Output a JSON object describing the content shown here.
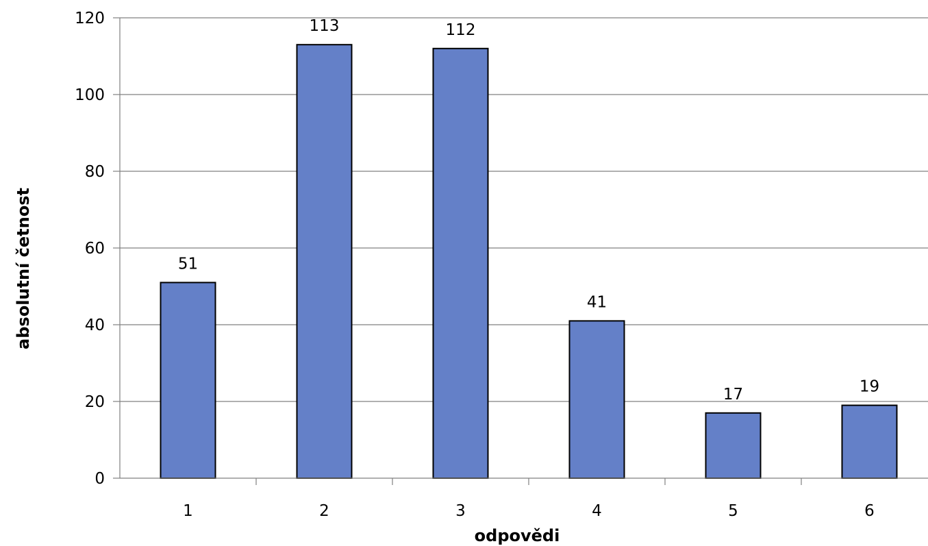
{
  "chart_data": {
    "type": "bar",
    "categories": [
      "1",
      "2",
      "3",
      "4",
      "5",
      "6"
    ],
    "values": [
      51,
      113,
      112,
      41,
      17,
      19
    ],
    "data_labels": [
      "51",
      "113",
      "112",
      "41",
      "17",
      "19"
    ],
    "title": "",
    "xlabel": "odpovědi",
    "ylabel": "absolutní četnost",
    "ylim": [
      0,
      120
    ],
    "yticks": [
      0,
      20,
      40,
      60,
      80,
      100,
      120
    ],
    "ytick_labels": [
      "0",
      "20",
      "40",
      "60",
      "80",
      "100",
      "120"
    ],
    "grid": true,
    "legend": "none",
    "bar_color": "#6480C8",
    "bar_edge_color": "#000000",
    "gridline_color": "#808080"
  }
}
